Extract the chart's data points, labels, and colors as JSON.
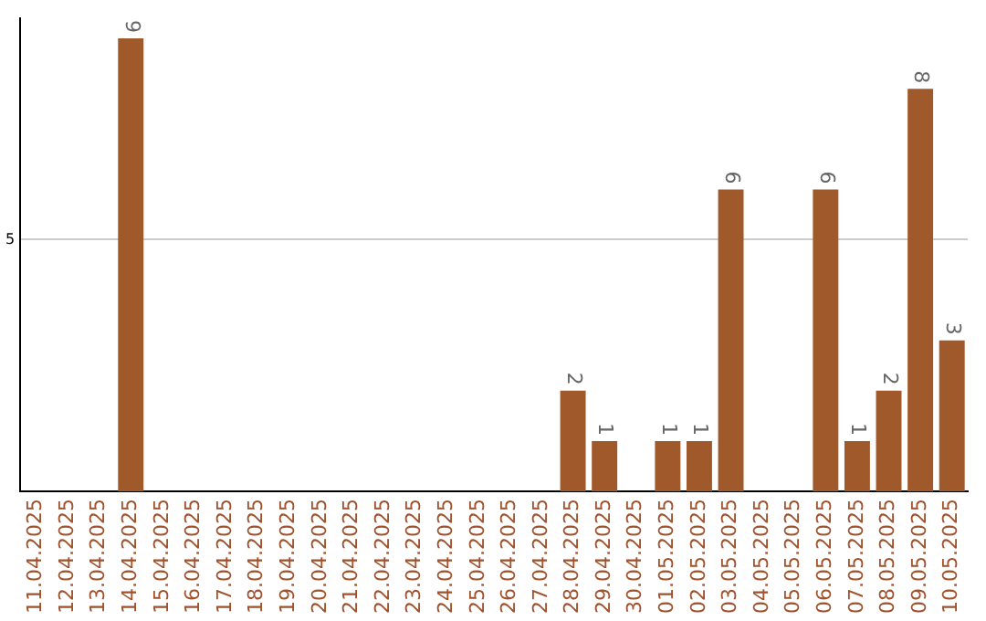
{
  "chart_data": {
    "type": "bar",
    "categories": [
      "11.04.2025",
      "12.04.2025",
      "13.04.2025",
      "14.04.2025",
      "15.04.2025",
      "16.04.2025",
      "17.04.2025",
      "18.04.2025",
      "19.04.2025",
      "20.04.2025",
      "21.04.2025",
      "22.04.2025",
      "23.04.2025",
      "24.04.2025",
      "25.04.2025",
      "26.04.2025",
      "27.04.2025",
      "28.04.2025",
      "29.04.2025",
      "30.04.2025",
      "01.05.2025",
      "02.05.2025",
      "03.05.2025",
      "04.05.2025",
      "05.05.2025",
      "06.05.2025",
      "07.05.2025",
      "08.05.2025",
      "09.05.2025",
      "10.05.2025"
    ],
    "values": [
      null,
      null,
      null,
      9,
      null,
      null,
      null,
      null,
      null,
      null,
      null,
      null,
      null,
      null,
      null,
      null,
      null,
      2,
      1,
      null,
      1,
      1,
      6,
      null,
      null,
      6,
      1,
      2,
      8,
      3
    ],
    "color": "#a0592b",
    "ylim": [
      0,
      9.4
    ],
    "yticks": [
      5
    ],
    "grid": "y",
    "data_labels": true,
    "legend": false
  }
}
